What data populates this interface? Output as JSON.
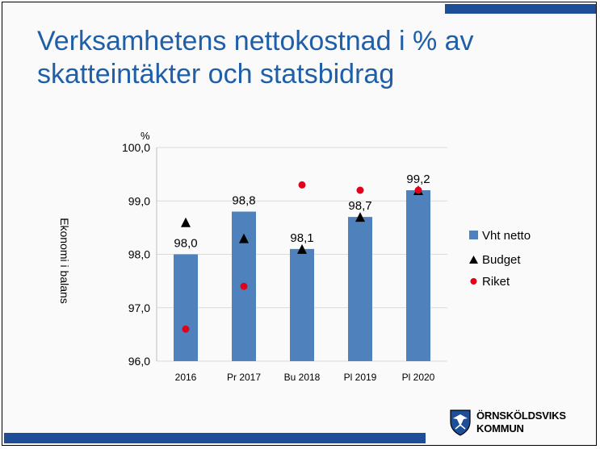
{
  "slide": {
    "title_line1": "Verksamhetens nettokostnad i % av",
    "title_line2": "skatteintäkter och statsbidrag",
    "logo_line1": "ÖRNSKÖLDSVIKS",
    "logo_line2": "KOMMUN"
  },
  "colors": {
    "bar": "#4f81bd",
    "budget": "#000000",
    "riket": "#e3001b",
    "title": "#1f5fa8",
    "accent_bars": "#1f4e99"
  },
  "chart_data": {
    "type": "bar",
    "title": "",
    "ylabel": "Ekonomi i balans",
    "yunit": "%",
    "ylim": [
      96.0,
      100.0
    ],
    "yticks": [
      "96,0",
      "97,0",
      "98,0",
      "99,0",
      "100,0"
    ],
    "ytick_values": [
      96.0,
      97.0,
      98.0,
      99.0,
      100.0
    ],
    "grid": true,
    "legend_position": "right",
    "categories": [
      "2016",
      "Pr 2017",
      "Bu 2018",
      "Pl 2019",
      "Pl 2020"
    ],
    "series": [
      {
        "name": "Vht netto",
        "kind": "bar",
        "values": [
          98.0,
          98.8,
          98.1,
          98.7,
          99.2
        ],
        "labels": [
          "98,0",
          "98,8",
          "98,1",
          "98,7",
          "99,2"
        ]
      },
      {
        "name": "Budget",
        "kind": "triangle",
        "values": [
          98.6,
          98.3,
          98.1,
          98.7,
          99.2
        ]
      },
      {
        "name": "Riket",
        "kind": "dot",
        "values": [
          96.6,
          97.4,
          99.3,
          99.2,
          99.2
        ]
      }
    ]
  }
}
